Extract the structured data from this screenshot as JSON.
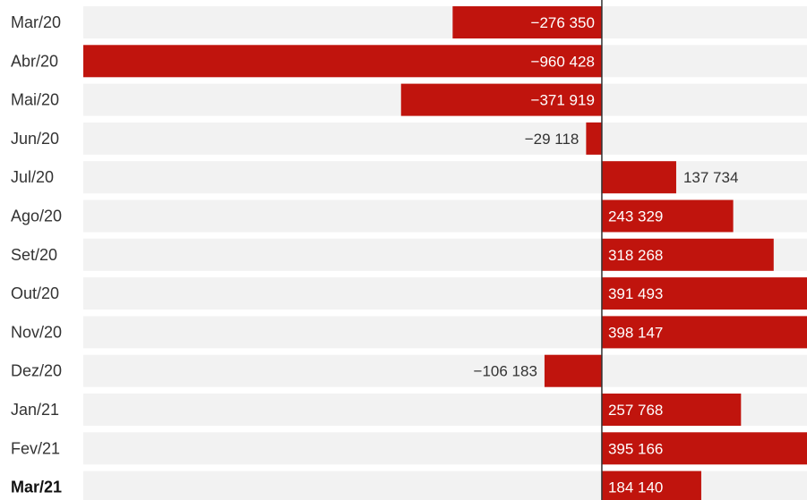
{
  "chart_data": {
    "type": "bar",
    "orientation": "horizontal",
    "categories": [
      "Mar/20",
      "Abr/20",
      "Mai/20",
      "Jun/20",
      "Jul/20",
      "Ago/20",
      "Set/20",
      "Out/20",
      "Nov/20",
      "Dez/20",
      "Jan/21",
      "Fev/21",
      "Mar/21"
    ],
    "values": [
      -276350,
      -960428,
      -371919,
      -29118,
      137734,
      243329,
      318268,
      391493,
      398147,
      -106183,
      257768,
      395166,
      184140
    ],
    "value_labels": [
      "−276 350",
      "−960 428",
      "−371 919",
      "−29 118",
      "137 734",
      "243 329",
      "318 268",
      "391 493",
      "398 147",
      "−106 183",
      "257 768",
      "395 166",
      "184 140"
    ],
    "highlighted_category": "Mar/21",
    "bar_color": "#c0140d",
    "row_background_color": "#f2f2f2",
    "xlim": [
      -960428,
      380000
    ],
    "title": "",
    "xlabel": "",
    "ylabel": "",
    "grid": false,
    "legend": "none"
  }
}
